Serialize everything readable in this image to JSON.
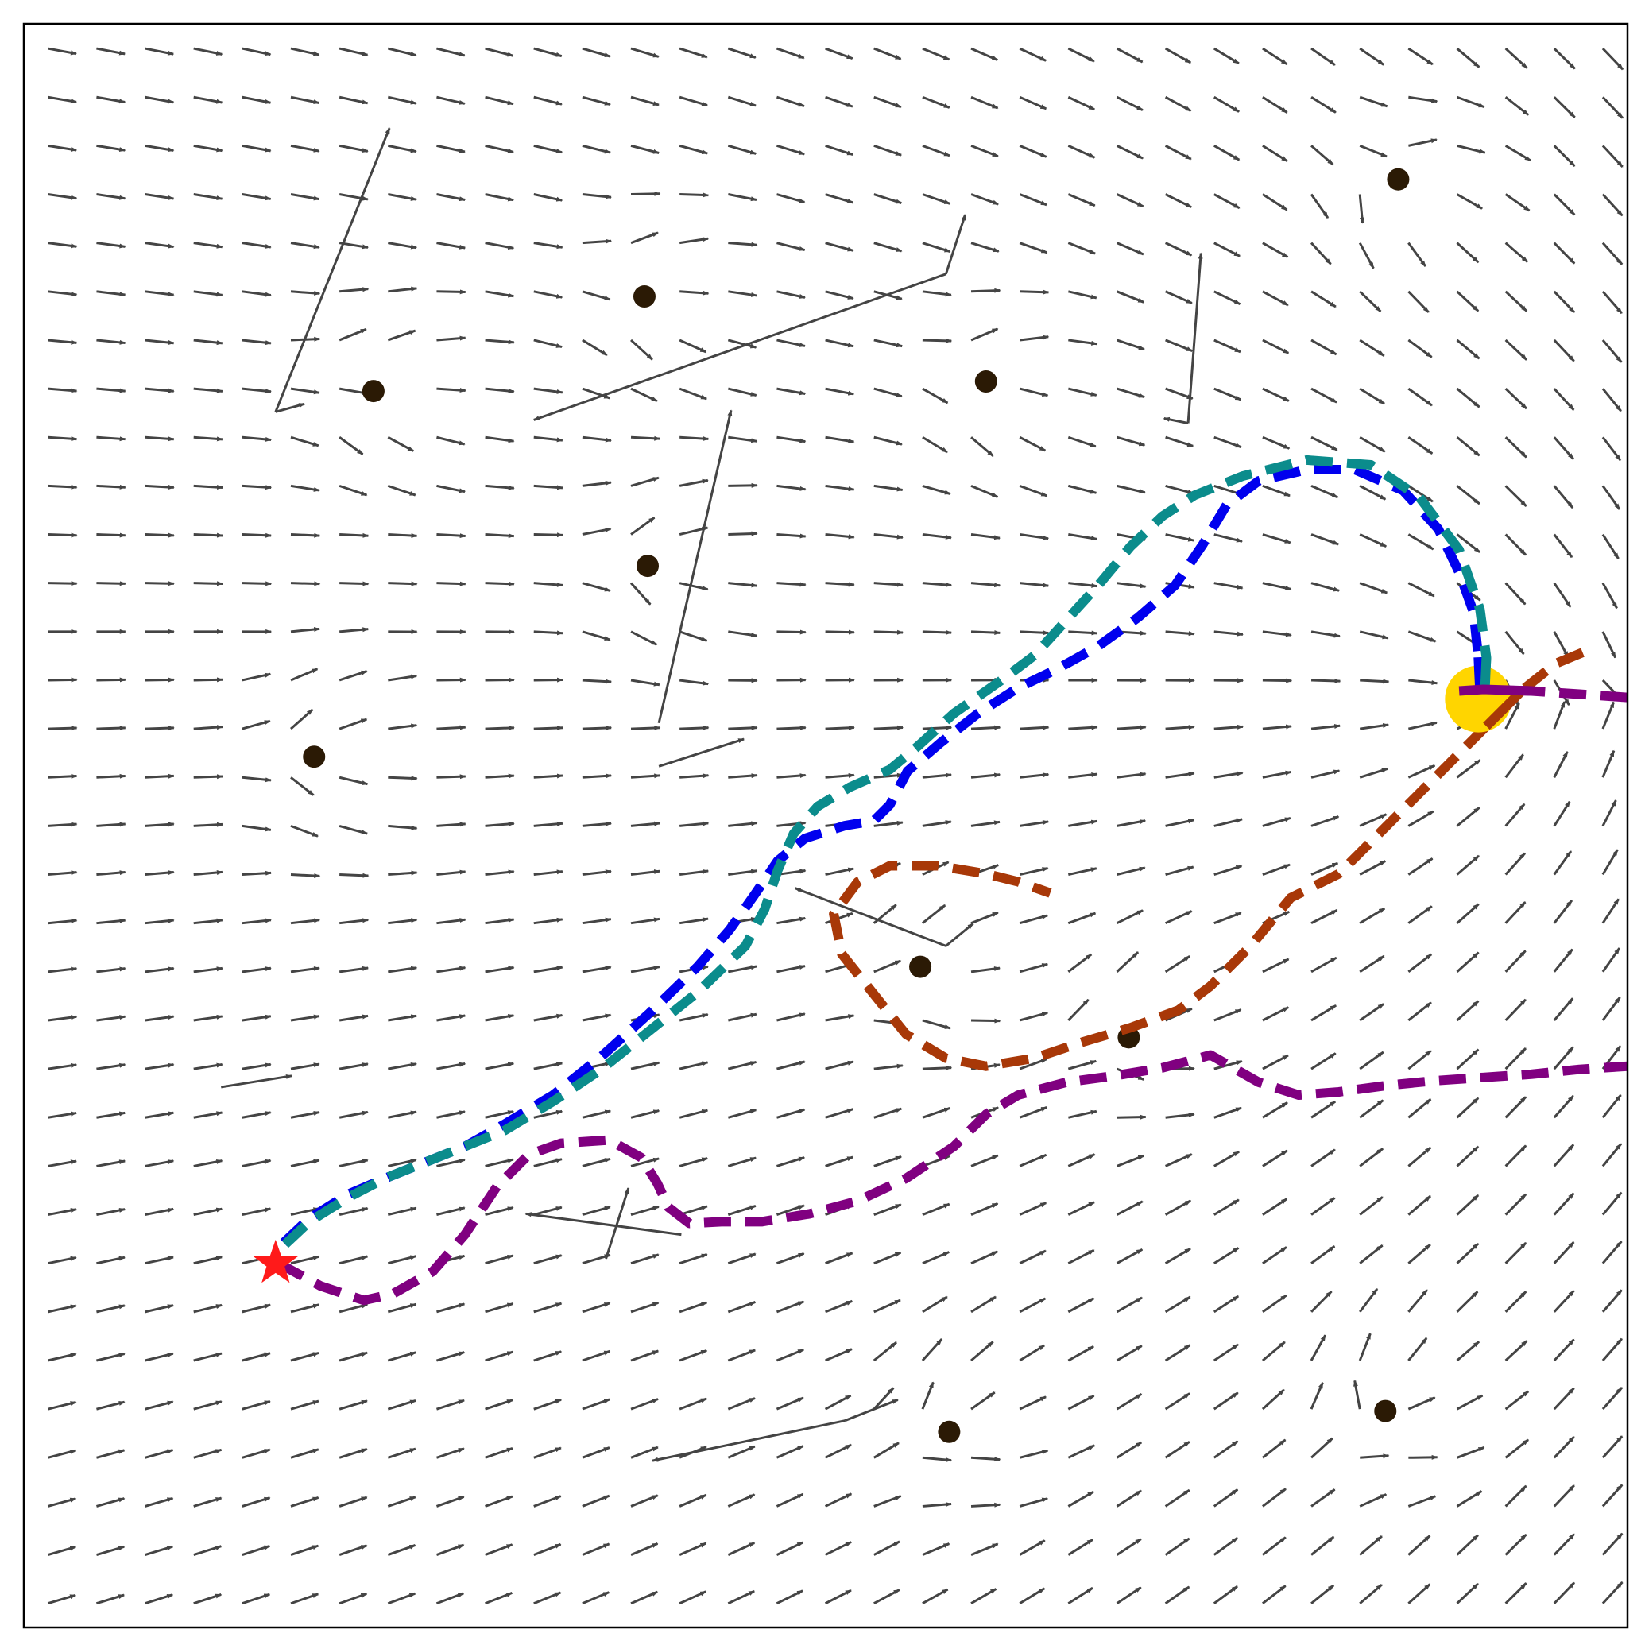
{
  "chart_data": {
    "type": "quiver",
    "xlim": [
      0,
      100
    ],
    "ylim": [
      0,
      100
    ],
    "grid": false,
    "title": "",
    "xlabel": "",
    "ylabel": "",
    "ticks_visible": false,
    "colors": {
      "arrow": "#444444",
      "obstacle": "#2b1a05",
      "goal": "#ffd500",
      "start": "#ff1a1a",
      "frame": "#000000"
    },
    "vector_field": {
      "grid_x_start": 1.5,
      "grid_x_step": 3.03,
      "grid_y_start": 1.5,
      "grid_y_step": 3.03,
      "arrow_length": 1.8,
      "base_direction_deg": 12,
      "goal_weight": 1.0
    },
    "obstacles": [
      {
        "x": 85.7,
        "y": 90.3
      },
      {
        "x": 38.7,
        "y": 83.0
      },
      {
        "x": 21.8,
        "y": 77.1
      },
      {
        "x": 60.0,
        "y": 77.7
      },
      {
        "x": 38.9,
        "y": 66.2
      },
      {
        "x": 18.1,
        "y": 54.3
      },
      {
        "x": 55.9,
        "y": 41.2
      },
      {
        "x": 68.9,
        "y": 36.8
      },
      {
        "x": 84.9,
        "y": 13.5
      },
      {
        "x": 57.7,
        "y": 12.2
      }
    ],
    "irregular_arrows": [
      {
        "x": 15.7,
        "y": 75.8,
        "dx": 7.1,
        "dy": 17.7
      },
      {
        "x": 15.7,
        "y": 75.8,
        "dx": 1.8,
        "dy": 0.5
      },
      {
        "x": 57.5,
        "y": 84.4,
        "dx": -25.7,
        "dy": -9.1
      },
      {
        "x": 57.5,
        "y": 84.4,
        "dx": 1.2,
        "dy": 3.7
      },
      {
        "x": 39.6,
        "y": 56.4,
        "dx": 4.5,
        "dy": 19.5
      },
      {
        "x": 72.6,
        "y": 75.1,
        "dx": 0.8,
        "dy": 10.6
      },
      {
        "x": 72.6,
        "y": 75.1,
        "dx": -1.5,
        "dy": 0.3
      },
      {
        "x": 57.5,
        "y": 42.5,
        "dx": -9.4,
        "dy": 3.6
      },
      {
        "x": 57.5,
        "y": 42.5,
        "dx": 1.7,
        "dy": 1.4
      },
      {
        "x": 39.6,
        "y": 53.7,
        "dx": 5.3,
        "dy": 1.7
      },
      {
        "x": 12.3,
        "y": 33.7,
        "dx": 4.4,
        "dy": 0.7
      },
      {
        "x": 41.0,
        "y": 24.5,
        "dx": -9.7,
        "dy": 1.3
      },
      {
        "x": 36.3,
        "y": 23.0,
        "dx": 1.4,
        "dy": 4.4
      },
      {
        "x": 51.2,
        "y": 12.9,
        "dx": -12.0,
        "dy": -2.5
      },
      {
        "x": 51.2,
        "y": 12.9,
        "dx": 3.3,
        "dy": 1.3
      }
    ],
    "series": [
      {
        "color": "#0000ee",
        "dash": "solid-dash",
        "points": [
          [
            16.2,
            24.0
          ],
          [
            17.8,
            25.5
          ],
          [
            20.2,
            27.0
          ],
          [
            22.5,
            28.0
          ],
          [
            25.0,
            29.0
          ],
          [
            27.5,
            30.0
          ],
          [
            30.0,
            31.4
          ],
          [
            33.0,
            33.2
          ],
          [
            36.0,
            35.6
          ],
          [
            39.0,
            38.3
          ],
          [
            42.0,
            41.2
          ],
          [
            44.0,
            43.5
          ],
          [
            45.5,
            45.6
          ],
          [
            47.0,
            47.8
          ],
          [
            48.7,
            49.2
          ],
          [
            51.2,
            50.0
          ],
          [
            53.0,
            50.3
          ],
          [
            54.0,
            51.3
          ],
          [
            55.1,
            53.4
          ],
          [
            57.2,
            55.2
          ],
          [
            59.5,
            57.0
          ],
          [
            62.0,
            58.6
          ],
          [
            64.5,
            59.8
          ],
          [
            67.0,
            61.2
          ],
          [
            69.5,
            63.0
          ],
          [
            71.8,
            65.0
          ],
          [
            73.5,
            67.5
          ],
          [
            75.0,
            70.0
          ],
          [
            77.0,
            71.5
          ],
          [
            80.0,
            72.2
          ],
          [
            83.0,
            72.2
          ],
          [
            86.0,
            70.9
          ],
          [
            88.2,
            68.5
          ],
          [
            89.5,
            65.8
          ],
          [
            90.4,
            63.3
          ],
          [
            90.7,
            60.5
          ],
          [
            90.8,
            58.4
          ]
        ]
      },
      {
        "color": "#0b8c8c",
        "dash": "dash",
        "points": [
          [
            16.3,
            23.9
          ],
          [
            17.8,
            25.3
          ],
          [
            20.2,
            26.8
          ],
          [
            22.5,
            28.0
          ],
          [
            25.0,
            29.0
          ],
          [
            27.5,
            30.0
          ],
          [
            30.0,
            31.0
          ],
          [
            33.0,
            32.8
          ],
          [
            36.0,
            34.8
          ],
          [
            39.0,
            37.2
          ],
          [
            42.0,
            39.6
          ],
          [
            45.0,
            42.5
          ],
          [
            46.2,
            44.8
          ],
          [
            47.0,
            47.2
          ],
          [
            48.0,
            49.5
          ],
          [
            49.5,
            51.2
          ],
          [
            51.5,
            52.4
          ],
          [
            54.0,
            53.5
          ],
          [
            55.8,
            55.0
          ],
          [
            58.0,
            57.0
          ],
          [
            61.0,
            59.1
          ],
          [
            63.0,
            60.6
          ],
          [
            65.0,
            62.8
          ],
          [
            67.0,
            65.0
          ],
          [
            69.0,
            67.4
          ],
          [
            71.0,
            69.3
          ],
          [
            73.0,
            70.6
          ],
          [
            76.0,
            71.8
          ],
          [
            80.0,
            72.8
          ],
          [
            84.0,
            72.5
          ],
          [
            87.0,
            70.5
          ],
          [
            89.5,
            67.2
          ],
          [
            90.8,
            63.5
          ],
          [
            91.2,
            60.5
          ],
          [
            91.1,
            58.3
          ]
        ]
      },
      {
        "color": "#a83808",
        "dash": "dash",
        "points": [
          [
            97.2,
            60.8
          ],
          [
            95.5,
            60.1
          ],
          [
            93.5,
            58.5
          ],
          [
            91.2,
            56.2
          ],
          [
            88.0,
            53.0
          ],
          [
            85.0,
            50.0
          ],
          [
            82.0,
            47.0
          ],
          [
            79.0,
            45.5
          ],
          [
            76.5,
            42.5
          ],
          [
            74.0,
            40.0
          ],
          [
            72.0,
            38.5
          ],
          [
            69.0,
            37.4
          ],
          [
            66.0,
            36.5
          ],
          [
            63.0,
            35.5
          ],
          [
            60.0,
            35.0
          ],
          [
            57.5,
            35.5
          ],
          [
            55.0,
            37.0
          ],
          [
            53.0,
            39.5
          ],
          [
            51.0,
            42.0
          ],
          [
            50.5,
            44.5
          ],
          [
            52.0,
            46.5
          ],
          [
            54.0,
            47.5
          ],
          [
            57.0,
            47.5
          ],
          [
            60.0,
            47.0
          ],
          [
            62.0,
            46.5
          ],
          [
            64.0,
            45.8
          ]
        ]
      },
      {
        "color": "#800080",
        "dash": "dash",
        "points": [
          [
            100.0,
            58.0
          ],
          [
            97.0,
            58.2
          ],
          [
            94.0,
            58.4
          ],
          [
            91.0,
            58.5
          ],
          [
            89.5,
            58.4
          ]
        ],
        "clip_start": true
      },
      {
        "color": "#800080",
        "dash": "dash",
        "points": [
          [
            15.9,
            22.7
          ],
          [
            18.5,
            21.3
          ],
          [
            21.2,
            20.4
          ],
          [
            23.0,
            20.8
          ],
          [
            25.5,
            22.2
          ],
          [
            27.5,
            24.5
          ],
          [
            29.5,
            27.5
          ],
          [
            31.5,
            29.5
          ],
          [
            33.5,
            30.2
          ],
          [
            36.5,
            30.4
          ],
          [
            38.5,
            29.3
          ],
          [
            39.5,
            27.7
          ],
          [
            40.2,
            26.2
          ],
          [
            41.5,
            25.2
          ],
          [
            43.5,
            25.3
          ],
          [
            46.0,
            25.3
          ],
          [
            49.0,
            25.8
          ],
          [
            52.0,
            26.6
          ],
          [
            55.0,
            28.0
          ],
          [
            58.0,
            30.0
          ],
          [
            60.0,
            32.0
          ],
          [
            62.0,
            33.2
          ],
          [
            65.0,
            34.0
          ],
          [
            68.0,
            34.4
          ],
          [
            71.0,
            34.9
          ],
          [
            74.0,
            35.7
          ],
          [
            77.0,
            34.0
          ],
          [
            79.5,
            33.2
          ],
          [
            82.0,
            33.4
          ],
          [
            85.0,
            33.8
          ],
          [
            88.0,
            34.1
          ],
          [
            91.0,
            34.3
          ],
          [
            94.0,
            34.5
          ],
          [
            97.0,
            34.8
          ],
          [
            100.0,
            35.0
          ]
        ]
      }
    ],
    "goal": {
      "x": 90.7,
      "y": 57.9
    },
    "start": {
      "x": 15.7,
      "y": 22.7
    }
  }
}
